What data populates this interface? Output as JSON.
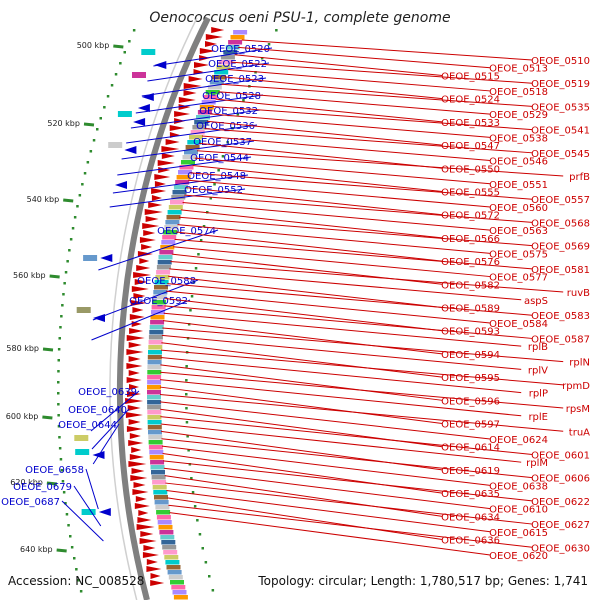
{
  "title": "Oenococcus oeni PSU-1, complete genome",
  "footer": {
    "accession": "Accession: NC_008528",
    "summary": "Topology: circular; Length: 1,780,517 bp; Genes: 1,741"
  },
  "colors": {
    "forward": "#cc0000",
    "reverse": "#0000cc",
    "backbone": "#808080",
    "tick": "#2e8b2e"
  },
  "scale_labels": [
    "500 kbp",
    "520 kbp",
    "540 kbp",
    "560 kbp",
    "580 kbp",
    "600 kbp",
    "620 kbp",
    "640 kbp"
  ],
  "left_genes": [
    "OEOE_0520",
    "OEOE_0522",
    "OEOE_0523",
    "OEOE_0528",
    "OEOE_0532",
    "OEOE_0536",
    "OEOE_0537",
    "OEOE_0544",
    "OEOE_0548",
    "OEOE_0552",
    "OEOE_0574",
    "OEOE_0588",
    "OEOE_0592",
    "OEOE_0639",
    "OEOE_0640",
    "OEOE_0644",
    "OEOE_0658",
    "OEOE_0679",
    "OEOE_0687"
  ],
  "right_genes": [
    "OEOE_0510",
    "OEOE_0513",
    "OEOE_0515",
    "OEOE_0519",
    "OEOE_0518",
    "OEOE_0524",
    "OEOE_0535",
    "OEOE_0529",
    "OEOE_0533",
    "OEOE_0541",
    "OEOE_0538",
    "OEOE_0547",
    "OEOE_0545",
    "OEOE_0546",
    "OEOE_0550",
    "prfB",
    "OEOE_0551",
    "OEOE_0555",
    "OEOE_0557",
    "OEOE_0560",
    "OEOE_0572",
    "OEOE_0568",
    "OEOE_0563",
    "OEOE_0566",
    "OEOE_0569",
    "OEOE_0575",
    "OEOE_0576",
    "OEOE_0581",
    "OEOE_0577",
    "OEOE_0582",
    "ruvB",
    "aspS",
    "OEOE_0589",
    "OEOE_0583",
    "OEOE_0584",
    "OEOE_0593",
    "OEOE_0587",
    "rplB",
    "OEOE_0594",
    "rplN",
    "rplV",
    "OEOE_0595",
    "rpmD",
    "rplP",
    "OEOE_0596",
    "rpsM",
    "rplE",
    "OEOE_0597",
    "truA",
    "OEOE_0624",
    "OEOE_0614",
    "OEOE_0601",
    "rplM",
    "OEOE_0619",
    "OEOE_0606",
    "OEOE_0638",
    "OEOE_0635",
    "OEOE_0622",
    "OEOE_0610",
    "OEOE_0634",
    "OEOE_0627",
    "OEOE_0615",
    "OEOE_0636",
    "OEOE_0630",
    "OEOE_0620"
  ]
}
